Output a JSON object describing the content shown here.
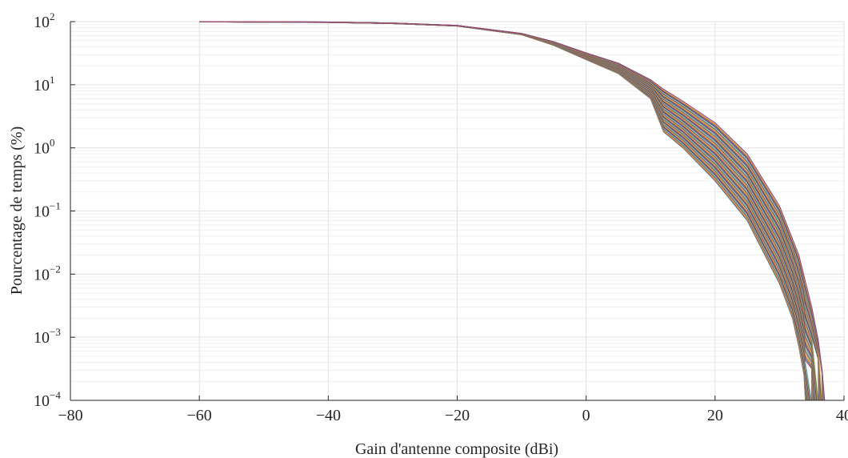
{
  "chart_data": {
    "type": "line",
    "title": "",
    "xlabel": "Gain d'antenne composite (dBi)",
    "ylabel": "Pourcentage de temps (%)",
    "xlim": [
      -80,
      40
    ],
    "ylim": [
      0.0001,
      100
    ],
    "yscale": "log",
    "grid": true,
    "legend": "none",
    "x_ticks": [
      {
        "value": -80,
        "label": "−80"
      },
      {
        "value": -60,
        "label": "−60"
      },
      {
        "value": -40,
        "label": "−40"
      },
      {
        "value": -20,
        "label": "−20"
      },
      {
        "value": 0,
        "label": "0"
      },
      {
        "value": 20,
        "label": "20"
      },
      {
        "value": 40,
        "label": "40"
      }
    ],
    "y_ticks": [
      {
        "value": 100,
        "base": "10",
        "exp": "2"
      },
      {
        "value": 10,
        "base": "10",
        "exp": "1"
      },
      {
        "value": 1,
        "base": "10",
        "exp": "0"
      },
      {
        "value": 0.1,
        "base": "10",
        "exp": "−1"
      },
      {
        "value": 0.01,
        "base": "10",
        "exp": "−2"
      },
      {
        "value": 0.001,
        "base": "10",
        "exp": "−3"
      },
      {
        "value": 0.0001,
        "base": "10",
        "exp": "−4"
      }
    ],
    "series_count": 60,
    "series_envelope": {
      "lower": {
        "x": [
          -60,
          -40,
          -30,
          -20,
          -10,
          -5,
          0,
          5,
          10,
          12,
          15,
          20,
          25,
          30,
          32,
          33,
          33.8,
          34
        ],
        "y": [
          99,
          97,
          93,
          85,
          62,
          42,
          25,
          15,
          6,
          1.8,
          1.0,
          0.3,
          0.07,
          0.007,
          0.002,
          0.0007,
          0.00025,
          0.0001
        ]
      },
      "upper": {
        "x": [
          -60,
          -40,
          -30,
          -20,
          -10,
          -5,
          0,
          5,
          10,
          12,
          15,
          20,
          25,
          30,
          33,
          35,
          36,
          36.6,
          37
        ],
        "y": [
          100,
          98.5,
          95,
          87,
          65,
          48,
          32,
          22,
          12,
          8.5,
          5.5,
          2.5,
          0.8,
          0.12,
          0.02,
          0.003,
          0.0009,
          0.0003,
          0.0001
        ]
      }
    },
    "series_colors": [
      "#0072BD",
      "#D95319",
      "#EDB120",
      "#7E2F8E",
      "#77AC30",
      "#4DBEEE",
      "#A2142F"
    ]
  }
}
